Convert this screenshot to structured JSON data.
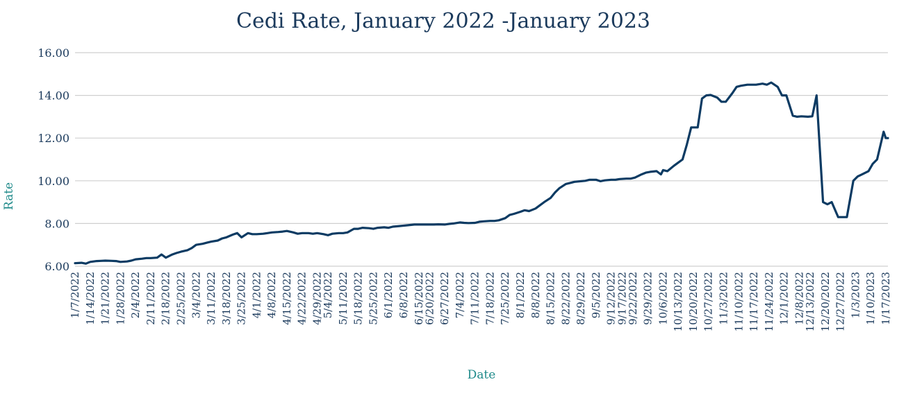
{
  "chart_data": {
    "type": "line",
    "title": "Cedi Rate, January 2022 -January 2023",
    "xlabel": "Date",
    "ylabel": "Rate",
    "ylim": [
      6,
      16
    ],
    "yticks": [
      "6.00",
      "8.00",
      "10.00",
      "12.00",
      "14.00",
      "16.00"
    ],
    "grid": "horizontal",
    "legend": "none",
    "colors": {
      "line": "#0d3b63",
      "title": "#1b3a5c",
      "axis_label": "#1f8a8a",
      "grid": "#cfcfcf"
    },
    "x_tick_labels": [
      "1/7/2022",
      "1/14/2022",
      "1/21/2022",
      "1/28/2022",
      "2/4/2022",
      "2/11/2022",
      "2/18/2022",
      "2/25/2022",
      "3/4/2022",
      "3/11/2022",
      "3/18/2022",
      "3/25/2022",
      "4/1/2022",
      "4/8/2022",
      "4/15/2022",
      "4/22/2022",
      "4/29/2022",
      "5/4/2022",
      "5/11/2022",
      "5/18/2022",
      "5/25/2022",
      "6/1/2022",
      "6/8/2022",
      "6/15/2022",
      "6/20/2022",
      "6/27/2022",
      "7/4/2022",
      "7/11/2022",
      "7/18/2022",
      "7/25/2022",
      "8/1/2022",
      "8/8/2022",
      "8/15/2022",
      "8/22/2022",
      "8/29/2022",
      "9/5/2022",
      "9/12/2022",
      "9/17/2022",
      "9/22/2022",
      "9/29/2022",
      "10/6/2022",
      "10/13/2022",
      "10/20/2022",
      "10/27/2022",
      "11/3/2022",
      "11/10/2022",
      "11/17/2022",
      "11/24/2022",
      "12/1/2022",
      "12/8/2022",
      "12/13/2022",
      "12/20/2022",
      "12/27/2022",
      "1/3/2023",
      "1/10/2023",
      "1/17/2023"
    ],
    "series": [
      {
        "points": [
          [
            "2022-01-07",
            6.14
          ],
          [
            "2022-01-10",
            6.16
          ],
          [
            "2022-01-12",
            6.12
          ],
          [
            "2022-01-14",
            6.2
          ],
          [
            "2022-01-17",
            6.24
          ],
          [
            "2022-01-19",
            6.25
          ],
          [
            "2022-01-21",
            6.26
          ],
          [
            "2022-01-24",
            6.25
          ],
          [
            "2022-01-26",
            6.24
          ],
          [
            "2022-01-28",
            6.2
          ],
          [
            "2022-01-31",
            6.22
          ],
          [
            "2022-02-02",
            6.26
          ],
          [
            "2022-02-04",
            6.32
          ],
          [
            "2022-02-07",
            6.35
          ],
          [
            "2022-02-09",
            6.38
          ],
          [
            "2022-02-11",
            6.38
          ],
          [
            "2022-02-14",
            6.4
          ],
          [
            "2022-02-16",
            6.55
          ],
          [
            "2022-02-18",
            6.4
          ],
          [
            "2022-02-21",
            6.55
          ],
          [
            "2022-02-23",
            6.62
          ],
          [
            "2022-02-25",
            6.68
          ],
          [
            "2022-02-28",
            6.75
          ],
          [
            "2022-03-02",
            6.85
          ],
          [
            "2022-03-04",
            7.0
          ],
          [
            "2022-03-07",
            7.05
          ],
          [
            "2022-03-09",
            7.1
          ],
          [
            "2022-03-11",
            7.15
          ],
          [
            "2022-03-14",
            7.2
          ],
          [
            "2022-03-16",
            7.3
          ],
          [
            "2022-03-18",
            7.35
          ],
          [
            "2022-03-21",
            7.48
          ],
          [
            "2022-03-23",
            7.55
          ],
          [
            "2022-03-25",
            7.35
          ],
          [
            "2022-03-28",
            7.55
          ],
          [
            "2022-03-30",
            7.5
          ],
          [
            "2022-04-01",
            7.5
          ],
          [
            "2022-04-04",
            7.52
          ],
          [
            "2022-04-06",
            7.55
          ],
          [
            "2022-04-08",
            7.58
          ],
          [
            "2022-04-11",
            7.6
          ],
          [
            "2022-04-13",
            7.62
          ],
          [
            "2022-04-15",
            7.65
          ],
          [
            "2022-04-18",
            7.58
          ],
          [
            "2022-04-20",
            7.52
          ],
          [
            "2022-04-22",
            7.55
          ],
          [
            "2022-04-25",
            7.55
          ],
          [
            "2022-04-27",
            7.52
          ],
          [
            "2022-04-29",
            7.55
          ],
          [
            "2022-05-02",
            7.5
          ],
          [
            "2022-05-04",
            7.45
          ],
          [
            "2022-05-06",
            7.52
          ],
          [
            "2022-05-09",
            7.55
          ],
          [
            "2022-05-11",
            7.55
          ],
          [
            "2022-05-13",
            7.58
          ],
          [
            "2022-05-16",
            7.75
          ],
          [
            "2022-05-18",
            7.75
          ],
          [
            "2022-05-20",
            7.8
          ],
          [
            "2022-05-23",
            7.78
          ],
          [
            "2022-05-25",
            7.75
          ],
          [
            "2022-05-27",
            7.8
          ],
          [
            "2022-05-30",
            7.82
          ],
          [
            "2022-06-01",
            7.8
          ],
          [
            "2022-06-03",
            7.85
          ],
          [
            "2022-06-06",
            7.88
          ],
          [
            "2022-06-08",
            7.9
          ],
          [
            "2022-06-10",
            7.92
          ],
          [
            "2022-06-13",
            7.95
          ],
          [
            "2022-06-15",
            7.95
          ],
          [
            "2022-06-17",
            7.95
          ],
          [
            "2022-06-20",
            7.95
          ],
          [
            "2022-06-22",
            7.95
          ],
          [
            "2022-06-24",
            7.96
          ],
          [
            "2022-06-27",
            7.95
          ],
          [
            "2022-06-29",
            7.98
          ],
          [
            "2022-07-01",
            8.0
          ],
          [
            "2022-07-04",
            8.05
          ],
          [
            "2022-07-06",
            8.03
          ],
          [
            "2022-07-08",
            8.02
          ],
          [
            "2022-07-11",
            8.03
          ],
          [
            "2022-07-13",
            8.08
          ],
          [
            "2022-07-15",
            8.1
          ],
          [
            "2022-07-18",
            8.12
          ],
          [
            "2022-07-20",
            8.12
          ],
          [
            "2022-07-22",
            8.15
          ],
          [
            "2022-07-25",
            8.25
          ],
          [
            "2022-07-27",
            8.4
          ],
          [
            "2022-07-29",
            8.45
          ],
          [
            "2022-08-01",
            8.55
          ],
          [
            "2022-08-03",
            8.62
          ],
          [
            "2022-08-05",
            8.58
          ],
          [
            "2022-08-08",
            8.7
          ],
          [
            "2022-08-10",
            8.85
          ],
          [
            "2022-08-12",
            9.0
          ],
          [
            "2022-08-15",
            9.2
          ],
          [
            "2022-08-17",
            9.45
          ],
          [
            "2022-08-19",
            9.65
          ],
          [
            "2022-08-22",
            9.85
          ],
          [
            "2022-08-24",
            9.9
          ],
          [
            "2022-08-26",
            9.95
          ],
          [
            "2022-08-29",
            9.98
          ],
          [
            "2022-08-31",
            10.0
          ],
          [
            "2022-09-02",
            10.05
          ],
          [
            "2022-09-05",
            10.05
          ],
          [
            "2022-09-07",
            9.98
          ],
          [
            "2022-09-09",
            10.02
          ],
          [
            "2022-09-12",
            10.05
          ],
          [
            "2022-09-14",
            10.05
          ],
          [
            "2022-09-16",
            10.08
          ],
          [
            "2022-09-19",
            10.1
          ],
          [
            "2022-09-21",
            10.1
          ],
          [
            "2022-09-23",
            10.15
          ],
          [
            "2022-09-26",
            10.3
          ],
          [
            "2022-09-28",
            10.38
          ],
          [
            "2022-09-30",
            10.42
          ],
          [
            "2022-10-03",
            10.45
          ],
          [
            "2022-10-05",
            10.3
          ],
          [
            "2022-10-06",
            10.5
          ],
          [
            "2022-10-08",
            10.45
          ],
          [
            "2022-10-11",
            10.7
          ],
          [
            "2022-10-13",
            10.85
          ],
          [
            "2022-10-15",
            11.0
          ],
          [
            "2022-10-17",
            11.7
          ],
          [
            "2022-10-19",
            12.5
          ],
          [
            "2022-10-20",
            12.5
          ],
          [
            "2022-10-22",
            12.5
          ],
          [
            "2022-10-24",
            13.85
          ],
          [
            "2022-10-26",
            14.0
          ],
          [
            "2022-10-28",
            14.02
          ],
          [
            "2022-10-31",
            13.9
          ],
          [
            "2022-11-02",
            13.7
          ],
          [
            "2022-11-04",
            13.7
          ],
          [
            "2022-11-07",
            14.1
          ],
          [
            "2022-11-09",
            14.4
          ],
          [
            "2022-11-11",
            14.45
          ],
          [
            "2022-11-14",
            14.5
          ],
          [
            "2022-11-16",
            14.5
          ],
          [
            "2022-11-18",
            14.5
          ],
          [
            "2022-11-21",
            14.55
          ],
          [
            "2022-11-23",
            14.5
          ],
          [
            "2022-11-25",
            14.6
          ],
          [
            "2022-11-28",
            14.4
          ],
          [
            "2022-11-30",
            14.0
          ],
          [
            "2022-12-02",
            14.0
          ],
          [
            "2022-12-05",
            13.05
          ],
          [
            "2022-12-07",
            13.0
          ],
          [
            "2022-12-09",
            13.02
          ],
          [
            "2022-12-12",
            13.0
          ],
          [
            "2022-12-14",
            13.02
          ],
          [
            "2022-12-16",
            14.0
          ],
          [
            "2022-12-19",
            9.0
          ],
          [
            "2022-12-21",
            8.9
          ],
          [
            "2022-12-23",
            9.0
          ],
          [
            "2022-12-26",
            8.3
          ],
          [
            "2022-12-28",
            8.3
          ],
          [
            "2022-12-30",
            8.3
          ],
          [
            "2023-01-02",
            10.0
          ],
          [
            "2023-01-04",
            10.2
          ],
          [
            "2023-01-06",
            10.3
          ],
          [
            "2023-01-09",
            10.45
          ],
          [
            "2023-01-11",
            10.8
          ],
          [
            "2023-01-13",
            11.0
          ],
          [
            "2023-01-16",
            12.3
          ],
          [
            "2023-01-17",
            12.0
          ],
          [
            "2023-01-18",
            12.0
          ]
        ]
      }
    ]
  }
}
